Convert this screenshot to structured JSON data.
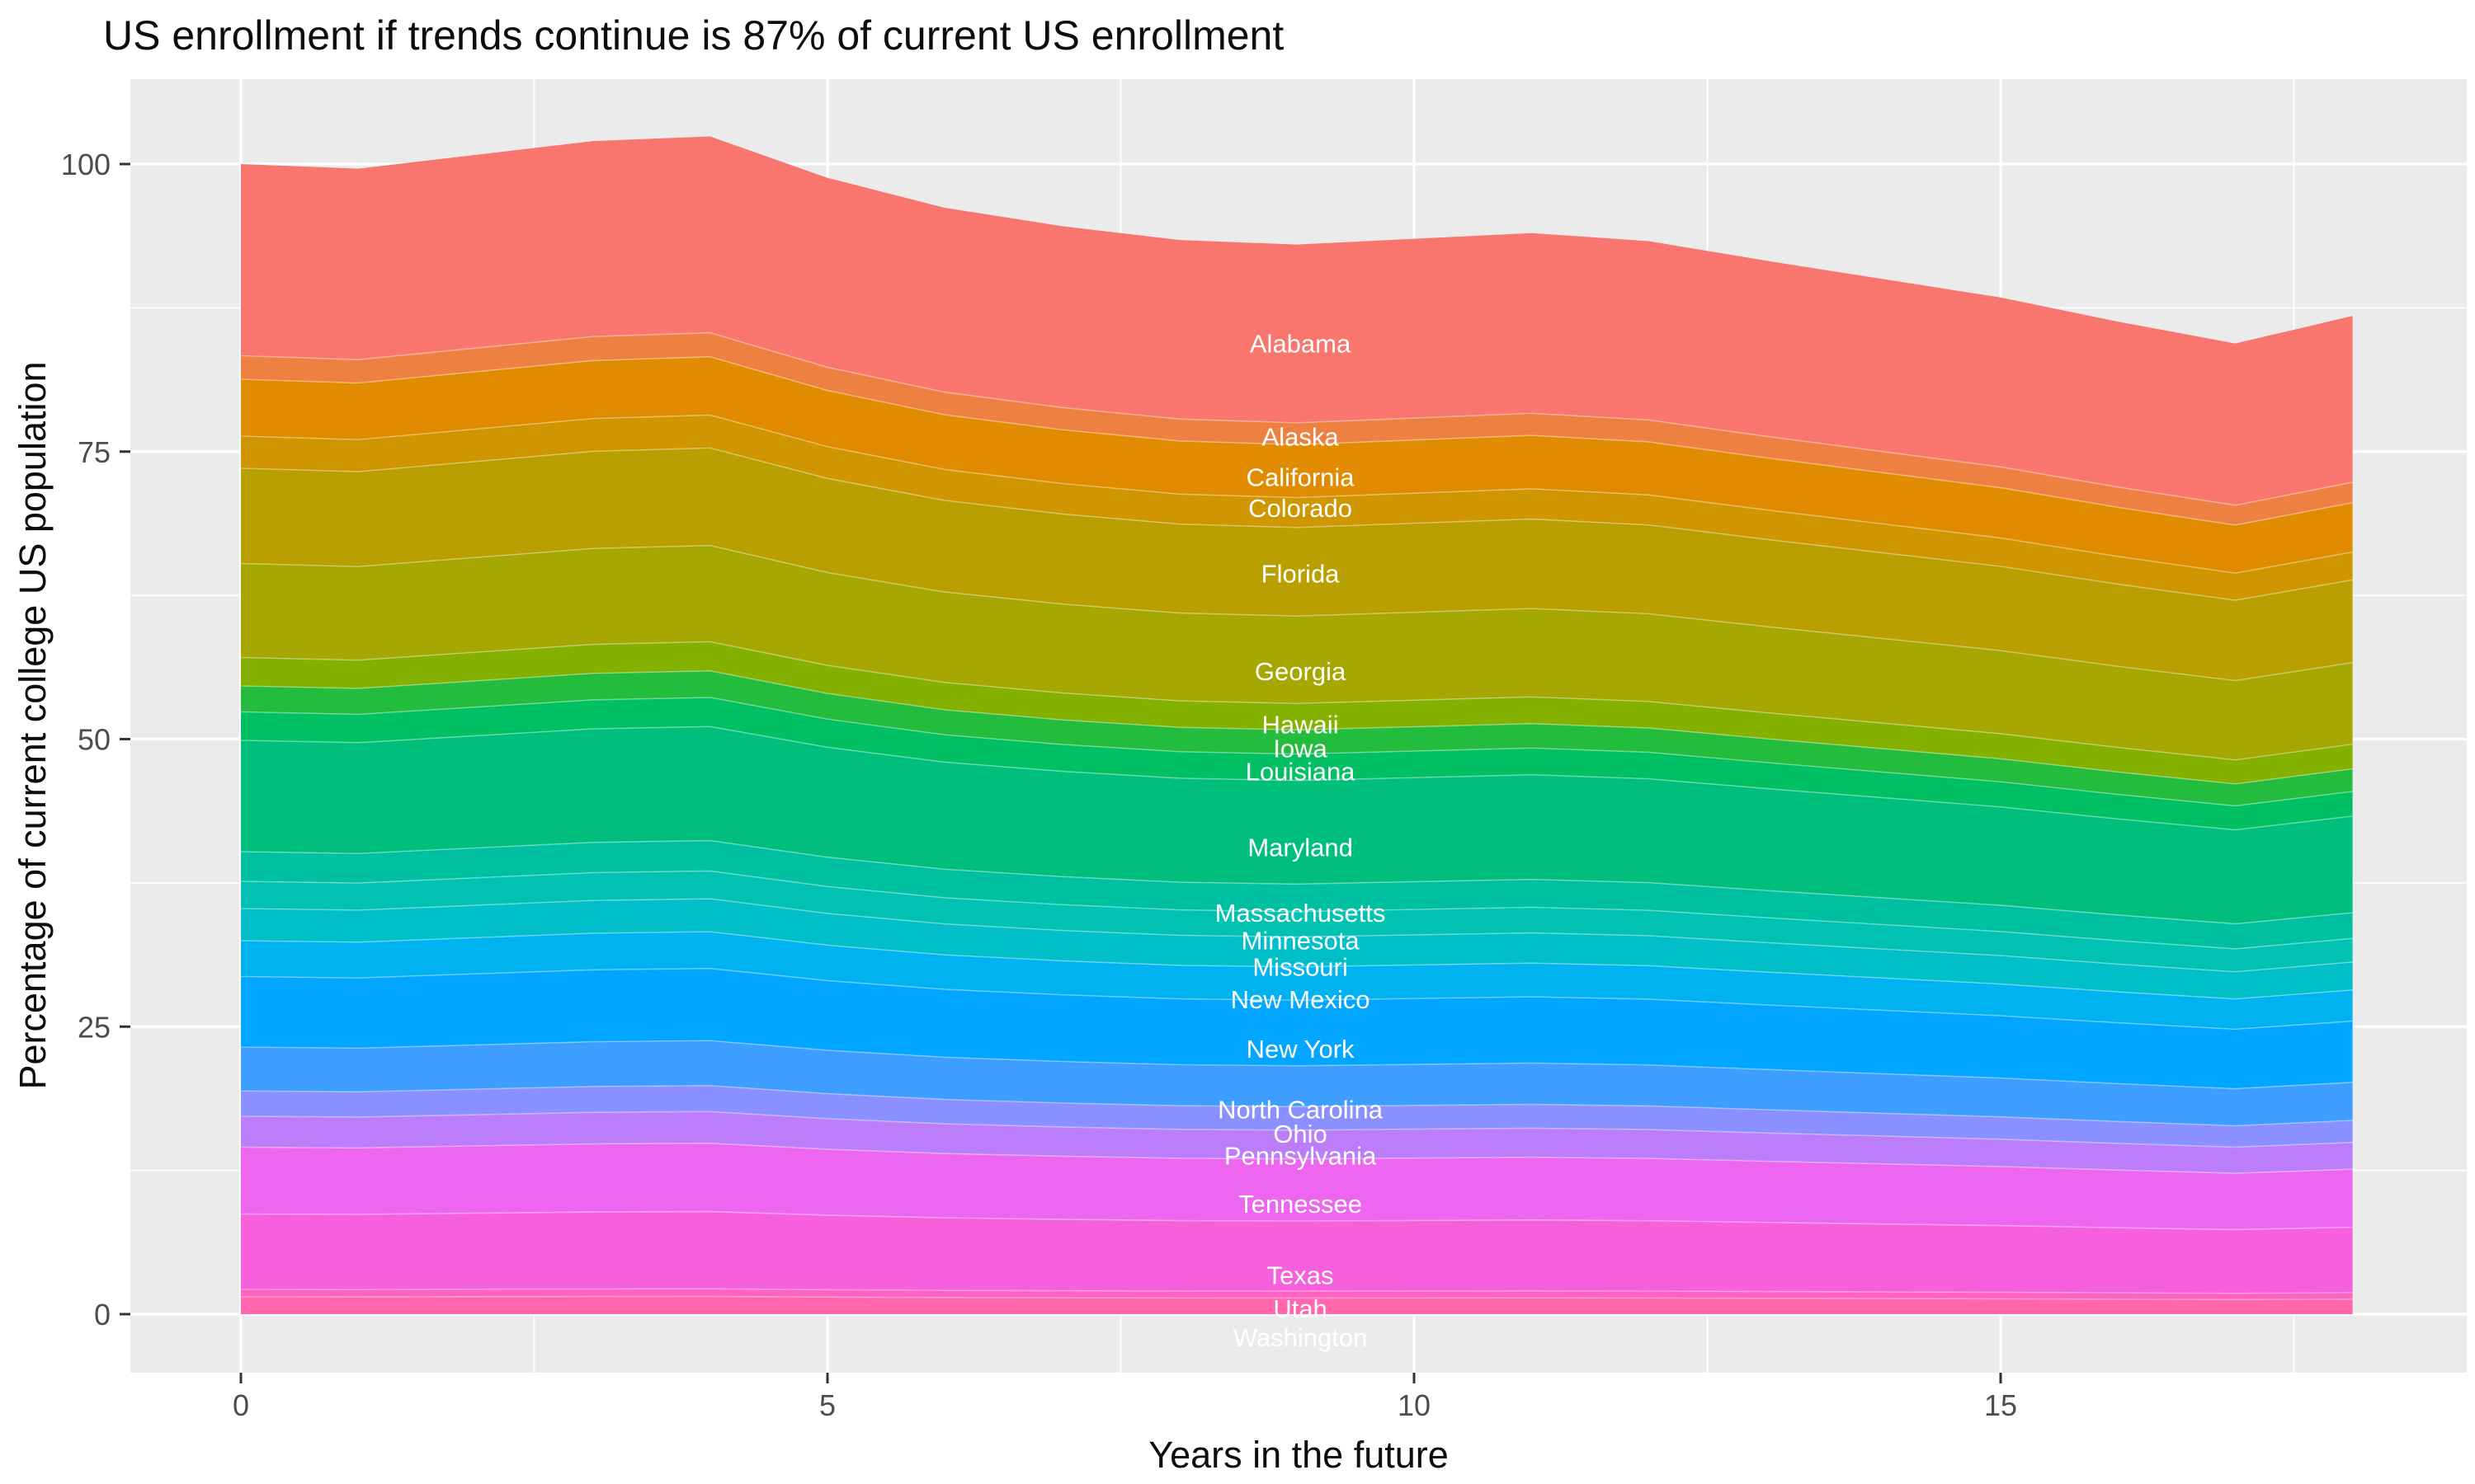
{
  "title": "US enrollment if trends continue is 87% of current US enrollment",
  "x_axis": {
    "label": "Years in the future",
    "tick_labels": [
      "0",
      "5",
      "10",
      "15"
    ],
    "tick_values": [
      0,
      5,
      10,
      15
    ],
    "minor_tick_values": [
      2.5,
      7.5,
      12.5,
      17.5
    ],
    "range": [
      0,
      18
    ]
  },
  "y_axis": {
    "label": "Percentage of current college US population",
    "tick_labels": [
      "0",
      "25",
      "50",
      "75",
      "100"
    ],
    "tick_values": [
      0,
      25,
      50,
      75,
      100
    ],
    "minor_tick_values": [
      12.5,
      37.5,
      62.5,
      87.5
    ],
    "range": [
      0,
      102.4
    ]
  },
  "colors": {
    "page_bg": "#FFFFFF",
    "panel_bg": "#EBEBEB",
    "grid": "#FFFFFF",
    "tick_mark": "#333333",
    "tick_text": "#4D4D4D",
    "title_text": "#0D0D0D",
    "state_label_text": "#FFFFFF"
  },
  "chart_data": {
    "type": "area",
    "stacked": true,
    "grid": true,
    "legend_position": "none",
    "xlabel": "Years in the future",
    "ylabel": "Percentage of current college US population",
    "x": [
      0,
      1,
      2,
      3,
      4,
      5,
      6,
      7,
      8,
      9,
      10,
      11,
      12,
      13,
      14,
      15,
      16,
      17,
      18
    ],
    "total": [
      100,
      99.6,
      100.8,
      102,
      102.4,
      98.8,
      96.2,
      94.6,
      93.4,
      93,
      93.5,
      94,
      93.3,
      91.6,
      90,
      88.4,
      86.3,
      84.4,
      86.8
    ],
    "share_sum": 93,
    "label_x": 9.03,
    "series": [
      {
        "name": "Alabama",
        "color": "#F8766D",
        "share": 15.5,
        "label_y": 84.4
      },
      {
        "name": "Alaska",
        "color": "#EE8142",
        "share": 1.9,
        "label_y": 76.3
      },
      {
        "name": "California",
        "color": "#E18C00",
        "share": 4.6,
        "label_y": 72.8
      },
      {
        "name": "Colorado",
        "color": "#D09600",
        "share": 2.6,
        "label_y": 70.1
      },
      {
        "name": "Florida",
        "color": "#B9A000",
        "share": 7.7,
        "label_y": 64.4
      },
      {
        "name": "Georgia",
        "color": "#A6A700",
        "share": 7.6,
        "label_y": 55.9
      },
      {
        "name": "Hawaii",
        "color": "#84B100",
        "share": 2.3,
        "label_y": 51.3
      },
      {
        "name": "Iowa",
        "color": "#24BC3C",
        "share": 2.1,
        "label_y": 49.2
      },
      {
        "name": "Louisiana",
        "color": "#00C063",
        "share": 2.3,
        "label_y": 47.2
      },
      {
        "name": "Maryland",
        "color": "#00BF7C",
        "share": 9.0,
        "label_y": 40.6
      },
      {
        "name": "Massachusetts",
        "color": "#00C0A2",
        "share": 2.4,
        "label_y": 34.9
      },
      {
        "name": "Minnesota",
        "color": "#00C1B2",
        "share": 2.2,
        "label_y": 32.5
      },
      {
        "name": "Missouri",
        "color": "#00BFC8",
        "share": 2.6,
        "label_y": 30.2
      },
      {
        "name": "New Mexico",
        "color": "#00B2F0",
        "share": 2.9,
        "label_y": 27.4
      },
      {
        "name": "New York",
        "color": "#00A6FF",
        "share": 5.7,
        "label_y": 23.1
      },
      {
        "name": "North Carolina",
        "color": "#3E9EFF",
        "share": 3.55,
        "label_y": 17.8
      },
      {
        "name": "Ohio",
        "color": "#8A90FF",
        "share": 2.05,
        "label_y": 15.7
      },
      {
        "name": "Pennsylvania",
        "color": "#BB7DFA",
        "share": 2.5,
        "label_y": 13.8
      },
      {
        "name": "Tennessee",
        "color": "#EC66F0",
        "share": 5.4,
        "label_y": 9.6
      },
      {
        "name": "Texas",
        "color": "#F660DC",
        "share": 6.1,
        "label_y": 3.4
      },
      {
        "name": "Utah",
        "color": "#FF62C1",
        "share": 0.6,
        "label_y": 0.5
      },
      {
        "name": "Washington",
        "color": "#FF66AC",
        "share": 1.4,
        "label_y": -2.0
      }
    ]
  }
}
